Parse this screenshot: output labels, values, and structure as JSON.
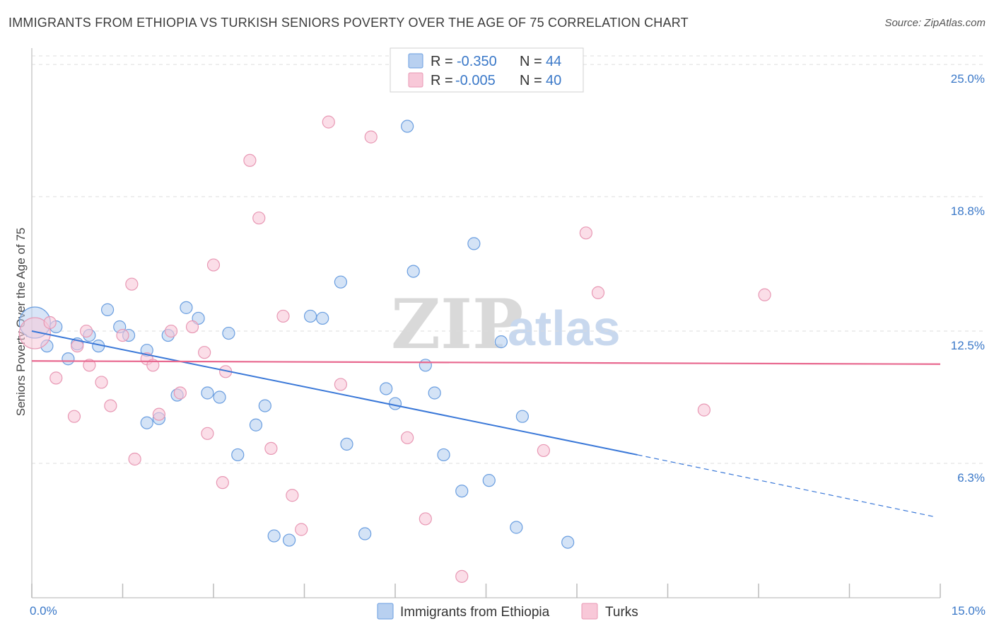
{
  "title": "IMMIGRANTS FROM ETHIOPIA VS TURKISH SENIORS POVERTY OVER THE AGE OF 75 CORRELATION CHART",
  "source": "Source: ZipAtlas.com",
  "watermark": {
    "zip": "ZIP",
    "atlas": "atlas"
  },
  "colors": {
    "blue_fill": "#b8d0f0",
    "blue_stroke": "#6a9ee0",
    "blue_line": "#3a78d8",
    "pink_fill": "#f8c8d8",
    "pink_stroke": "#e898b4",
    "pink_line": "#e8688f",
    "axis_text": "#3a78c8",
    "grid": "#dddddd"
  },
  "legend": {
    "rows": [
      {
        "r_label": "R =",
        "r_value": "-0.350",
        "n_label": "N =",
        "n_value": "44"
      },
      {
        "r_label": "R =",
        "r_value": "-0.005",
        "n_label": "N =",
        "n_value": "40"
      }
    ]
  },
  "chart_data": {
    "type": "scatter",
    "xlabel": "",
    "ylabel": "Seniors Poverty Over the Age of 75",
    "xlim": [
      0,
      15
    ],
    "ylim": [
      0,
      25.5
    ],
    "x_tick_labels": [
      "0.0%",
      "15.0%"
    ],
    "y_ticks": [
      6.3,
      12.5,
      18.8,
      25.0
    ],
    "y_tick_labels": [
      "6.3%",
      "12.5%",
      "18.8%",
      "25.0%"
    ],
    "series": [
      {
        "name": "Immigrants from Ethiopia",
        "color": "#6a9ee0",
        "trend": {
          "x0": 0.0,
          "y0": 12.5,
          "x1": 10.0,
          "y1": 6.7,
          "dash_to_x": 14.9,
          "dash_to_y": 3.8
        },
        "points": [
          {
            "x": 0.05,
            "y": 12.9,
            "big": true
          },
          {
            "x": 0.25,
            "y": 11.8
          },
          {
            "x": 0.4,
            "y": 12.7
          },
          {
            "x": 0.6,
            "y": 11.2
          },
          {
            "x": 0.75,
            "y": 11.9
          },
          {
            "x": 0.95,
            "y": 12.3
          },
          {
            "x": 1.1,
            "y": 11.8
          },
          {
            "x": 1.25,
            "y": 13.5
          },
          {
            "x": 1.45,
            "y": 12.7
          },
          {
            "x": 1.6,
            "y": 12.3
          },
          {
            "x": 1.9,
            "y": 8.2
          },
          {
            "x": 1.9,
            "y": 11.6
          },
          {
            "x": 2.1,
            "y": 8.4
          },
          {
            "x": 2.25,
            "y": 12.3
          },
          {
            "x": 2.4,
            "y": 9.5
          },
          {
            "x": 2.55,
            "y": 13.6
          },
          {
            "x": 2.75,
            "y": 13.1
          },
          {
            "x": 2.9,
            "y": 9.6
          },
          {
            "x": 3.1,
            "y": 9.4
          },
          {
            "x": 3.25,
            "y": 12.4
          },
          {
            "x": 3.4,
            "y": 6.7
          },
          {
            "x": 3.7,
            "y": 8.1
          },
          {
            "x": 3.85,
            "y": 9.0
          },
          {
            "x": 4.0,
            "y": 2.9
          },
          {
            "x": 4.25,
            "y": 2.7
          },
          {
            "x": 4.6,
            "y": 13.2
          },
          {
            "x": 4.8,
            "y": 13.1
          },
          {
            "x": 5.1,
            "y": 14.8
          },
          {
            "x": 5.2,
            "y": 7.2
          },
          {
            "x": 5.5,
            "y": 3.0
          },
          {
            "x": 5.85,
            "y": 9.8
          },
          {
            "x": 6.0,
            "y": 9.1
          },
          {
            "x": 6.2,
            "y": 22.1
          },
          {
            "x": 6.3,
            "y": 15.3
          },
          {
            "x": 6.5,
            "y": 10.9
          },
          {
            "x": 6.65,
            "y": 9.6
          },
          {
            "x": 6.8,
            "y": 6.7
          },
          {
            "x": 7.1,
            "y": 5.0
          },
          {
            "x": 7.3,
            "y": 16.6
          },
          {
            "x": 7.55,
            "y": 5.5
          },
          {
            "x": 7.75,
            "y": 12.0
          },
          {
            "x": 8.0,
            "y": 3.3
          },
          {
            "x": 8.1,
            "y": 8.5
          },
          {
            "x": 8.85,
            "y": 2.6
          }
        ]
      },
      {
        "name": "Turks",
        "color": "#e898b4",
        "trend": {
          "x0": 0.0,
          "y0": 11.1,
          "x1": 15.0,
          "y1": 10.95
        },
        "points": [
          {
            "x": 0.05,
            "y": 12.4,
            "big": true
          },
          {
            "x": 0.3,
            "y": 12.9
          },
          {
            "x": 0.4,
            "y": 10.3
          },
          {
            "x": 0.7,
            "y": 8.5
          },
          {
            "x": 0.75,
            "y": 11.8
          },
          {
            "x": 0.9,
            "y": 12.5
          },
          {
            "x": 0.95,
            "y": 10.9
          },
          {
            "x": 1.15,
            "y": 10.1
          },
          {
            "x": 1.3,
            "y": 9.0
          },
          {
            "x": 1.5,
            "y": 12.3
          },
          {
            "x": 1.65,
            "y": 14.7
          },
          {
            "x": 1.7,
            "y": 6.5
          },
          {
            "x": 1.9,
            "y": 11.2
          },
          {
            "x": 2.0,
            "y": 10.9
          },
          {
            "x": 2.1,
            "y": 8.6
          },
          {
            "x": 2.3,
            "y": 12.5
          },
          {
            "x": 2.45,
            "y": 9.6
          },
          {
            "x": 2.65,
            "y": 12.7
          },
          {
            "x": 2.85,
            "y": 11.5
          },
          {
            "x": 2.9,
            "y": 7.7
          },
          {
            "x": 3.0,
            "y": 15.6
          },
          {
            "x": 3.15,
            "y": 5.4
          },
          {
            "x": 3.2,
            "y": 10.6
          },
          {
            "x": 3.6,
            "y": 20.5
          },
          {
            "x": 3.75,
            "y": 17.8
          },
          {
            "x": 3.95,
            "y": 7.0
          },
          {
            "x": 4.15,
            "y": 13.2
          },
          {
            "x": 4.3,
            "y": 4.8
          },
          {
            "x": 4.45,
            "y": 3.2
          },
          {
            "x": 4.9,
            "y": 22.3
          },
          {
            "x": 5.1,
            "y": 10.0
          },
          {
            "x": 5.6,
            "y": 21.6
          },
          {
            "x": 6.2,
            "y": 7.5
          },
          {
            "x": 6.5,
            "y": 3.7
          },
          {
            "x": 7.1,
            "y": 1.0
          },
          {
            "x": 8.45,
            "y": 6.9
          },
          {
            "x": 9.15,
            "y": 17.1
          },
          {
            "x": 9.35,
            "y": 14.3
          },
          {
            "x": 11.1,
            "y": 8.8
          },
          {
            "x": 12.1,
            "y": 14.2
          }
        ]
      }
    ]
  }
}
